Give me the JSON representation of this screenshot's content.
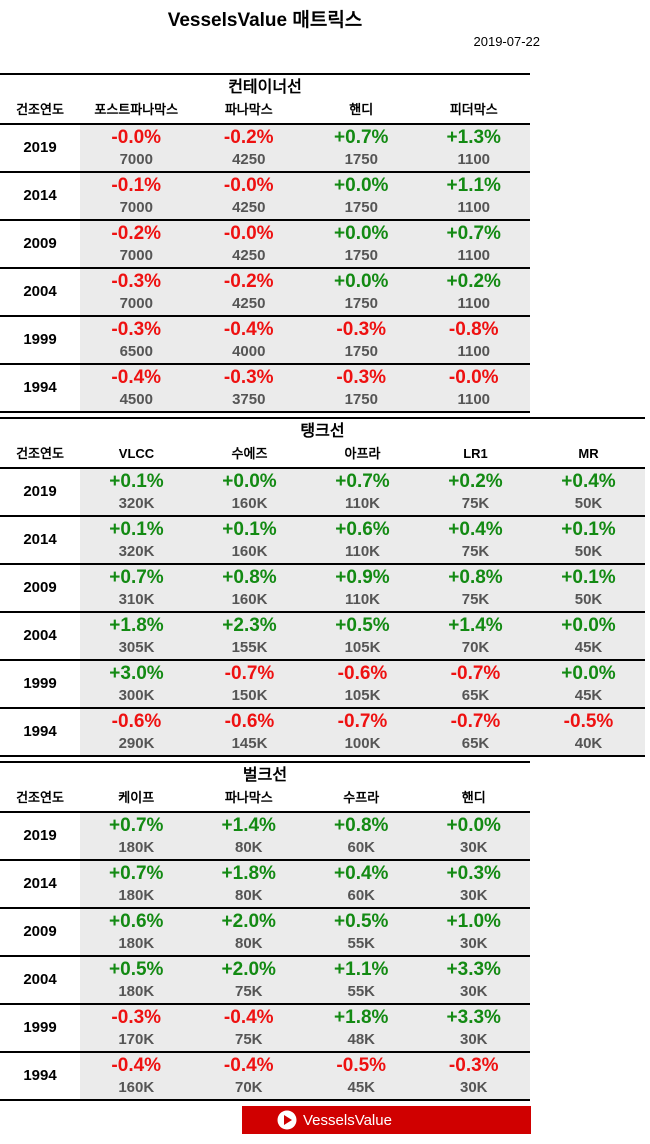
{
  "title": "VesselsValue 매트릭스",
  "date": "2019-07-22",
  "year_header": "건조연도",
  "colors": {
    "positive": "#138a13",
    "negative": "#ee1111",
    "cell_bg": "#ebebeb",
    "logo_bg": "#d00000"
  },
  "sections": [
    {
      "title": "컨테이너선",
      "columns": [
        "포스트파나막스",
        "파나막스",
        "핸디",
        "피더막스"
      ],
      "rows": [
        {
          "year": "2019",
          "cells": [
            [
              "-0.0%",
              "7000"
            ],
            [
              "-0.2%",
              "4250"
            ],
            [
              "+0.7%",
              "1750"
            ],
            [
              "+1.3%",
              "1100"
            ]
          ]
        },
        {
          "year": "2014",
          "cells": [
            [
              "-0.1%",
              "7000"
            ],
            [
              "-0.0%",
              "4250"
            ],
            [
              "+0.0%",
              "1750"
            ],
            [
              "+1.1%",
              "1100"
            ]
          ]
        },
        {
          "year": "2009",
          "cells": [
            [
              "-0.2%",
              "7000"
            ],
            [
              "-0.0%",
              "4250"
            ],
            [
              "+0.0%",
              "1750"
            ],
            [
              "+0.7%",
              "1100"
            ]
          ]
        },
        {
          "year": "2004",
          "cells": [
            [
              "-0.3%",
              "7000"
            ],
            [
              "-0.2%",
              "4250"
            ],
            [
              "+0.0%",
              "1750"
            ],
            [
              "+0.2%",
              "1100"
            ]
          ]
        },
        {
          "year": "1999",
          "cells": [
            [
              "-0.3%",
              "6500"
            ],
            [
              "-0.4%",
              "4000"
            ],
            [
              "-0.3%",
              "1750"
            ],
            [
              "-0.8%",
              "1100"
            ]
          ]
        },
        {
          "year": "1994",
          "cells": [
            [
              "-0.4%",
              "4500"
            ],
            [
              "-0.3%",
              "3750"
            ],
            [
              "-0.3%",
              "1750"
            ],
            [
              "-0.0%",
              "1100"
            ]
          ]
        }
      ]
    },
    {
      "title": "탱크선",
      "columns": [
        "VLCC",
        "수에즈",
        "아프라",
        "LR1",
        "MR"
      ],
      "rows": [
        {
          "year": "2019",
          "cells": [
            [
              "+0.1%",
              "320K"
            ],
            [
              "+0.0%",
              "160K"
            ],
            [
              "+0.7%",
              "110K"
            ],
            [
              "+0.2%",
              "75K"
            ],
            [
              "+0.4%",
              "50K"
            ]
          ]
        },
        {
          "year": "2014",
          "cells": [
            [
              "+0.1%",
              "320K"
            ],
            [
              "+0.1%",
              "160K"
            ],
            [
              "+0.6%",
              "110K"
            ],
            [
              "+0.4%",
              "75K"
            ],
            [
              "+0.1%",
              "50K"
            ]
          ]
        },
        {
          "year": "2009",
          "cells": [
            [
              "+0.7%",
              "310K"
            ],
            [
              "+0.8%",
              "160K"
            ],
            [
              "+0.9%",
              "110K"
            ],
            [
              "+0.8%",
              "75K"
            ],
            [
              "+0.1%",
              "50K"
            ]
          ]
        },
        {
          "year": "2004",
          "cells": [
            [
              "+1.8%",
              "305K"
            ],
            [
              "+2.3%",
              "155K"
            ],
            [
              "+0.5%",
              "105K"
            ],
            [
              "+1.4%",
              "70K"
            ],
            [
              "+0.0%",
              "45K"
            ]
          ]
        },
        {
          "year": "1999",
          "cells": [
            [
              "+3.0%",
              "300K"
            ],
            [
              "-0.7%",
              "150K"
            ],
            [
              "-0.6%",
              "105K"
            ],
            [
              "-0.7%",
              "65K"
            ],
            [
              "+0.0%",
              "45K"
            ]
          ]
        },
        {
          "year": "1994",
          "cells": [
            [
              "-0.6%",
              "290K"
            ],
            [
              "-0.6%",
              "145K"
            ],
            [
              "-0.7%",
              "100K"
            ],
            [
              "-0.7%",
              "65K"
            ],
            [
              "-0.5%",
              "40K"
            ]
          ]
        }
      ]
    },
    {
      "title": "벌크선",
      "columns": [
        "케이프",
        "파나막스",
        "수프라",
        "핸디"
      ],
      "rows": [
        {
          "year": "2019",
          "cells": [
            [
              "+0.7%",
              "180K"
            ],
            [
              "+1.4%",
              "80K"
            ],
            [
              "+0.8%",
              "60K"
            ],
            [
              "+0.0%",
              "30K"
            ]
          ]
        },
        {
          "year": "2014",
          "cells": [
            [
              "+0.7%",
              "180K"
            ],
            [
              "+1.8%",
              "80K"
            ],
            [
              "+0.4%",
              "60K"
            ],
            [
              "+0.3%",
              "30K"
            ]
          ]
        },
        {
          "year": "2009",
          "cells": [
            [
              "+0.6%",
              "180K"
            ],
            [
              "+2.0%",
              "80K"
            ],
            [
              "+0.5%",
              "55K"
            ],
            [
              "+1.0%",
              "30K"
            ]
          ]
        },
        {
          "year": "2004",
          "cells": [
            [
              "+0.5%",
              "180K"
            ],
            [
              "+2.0%",
              "75K"
            ],
            [
              "+1.1%",
              "55K"
            ],
            [
              "+3.3%",
              "30K"
            ]
          ]
        },
        {
          "year": "1999",
          "cells": [
            [
              "-0.3%",
              "170K"
            ],
            [
              "-0.4%",
              "75K"
            ],
            [
              "+1.8%",
              "48K"
            ],
            [
              "+3.3%",
              "30K"
            ]
          ]
        },
        {
          "year": "1994",
          "cells": [
            [
              "-0.4%",
              "160K"
            ],
            [
              "-0.4%",
              "70K"
            ],
            [
              "-0.5%",
              "45K"
            ],
            [
              "-0.3%",
              "30K"
            ]
          ]
        }
      ]
    }
  ],
  "logo": {
    "text": "VesselsValue"
  }
}
